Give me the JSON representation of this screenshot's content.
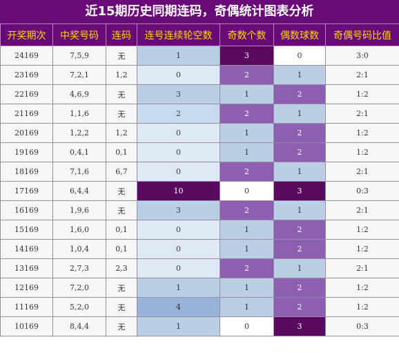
{
  "title": "近15期历史同期连码，奇偶统计图表分析",
  "headers": [
    "开奖期次",
    "中奖号码",
    "连码",
    "连号连续轮空数",
    "奇数个数",
    "偶数球数",
    "奇偶号码比值"
  ],
  "rows": [
    {
      "period": "24169",
      "numbers": "7,5,9",
      "consec": "无",
      "gap": "1",
      "odd": "3",
      "even": "0",
      "ratio": "3:0"
    },
    {
      "period": "23169",
      "numbers": "7,2,1",
      "consec": "1,2",
      "gap": "0",
      "odd": "2",
      "even": "1",
      "ratio": "2:1"
    },
    {
      "period": "22169",
      "numbers": "4,6,9",
      "consec": "无",
      "gap": "3",
      "odd": "1",
      "even": "2",
      "ratio": "1:2"
    },
    {
      "period": "21169",
      "numbers": "1,1,6",
      "consec": "无",
      "gap": "2",
      "odd": "2",
      "even": "1",
      "ratio": "2:1"
    },
    {
      "period": "20169",
      "numbers": "1,2,2",
      "consec": "1,2",
      "gap": "0",
      "odd": "1",
      "even": "2",
      "ratio": "1:2"
    },
    {
      "period": "19169",
      "numbers": "0,4,1",
      "consec": "0,1",
      "gap": "0",
      "odd": "1",
      "even": "2",
      "ratio": "1:2"
    },
    {
      "period": "18169",
      "numbers": "7,1,6",
      "consec": "6,7",
      "gap": "0",
      "odd": "2",
      "even": "1",
      "ratio": "2:1"
    },
    {
      "period": "17169",
      "numbers": "6,4,4",
      "consec": "无",
      "gap": "10",
      "odd": "0",
      "even": "3",
      "ratio": "0:3"
    },
    {
      "period": "16169",
      "numbers": "1,9,6",
      "consec": "无",
      "gap": "3",
      "odd": "2",
      "even": "1",
      "ratio": "2:1"
    },
    {
      "period": "15169",
      "numbers": "1,6,0",
      "consec": "0,1",
      "gap": "0",
      "odd": "1",
      "even": "2",
      "ratio": "1:2"
    },
    {
      "period": "14169",
      "numbers": "1,0,4",
      "consec": "0,1",
      "gap": "0",
      "odd": "1",
      "even": "2",
      "ratio": "1:2"
    },
    {
      "period": "13169",
      "numbers": "2,7,3",
      "consec": "2,3",
      "gap": "0",
      "odd": "2",
      "even": "1",
      "ratio": "2:1"
    },
    {
      "period": "12169",
      "numbers": "7,2,0",
      "consec": "无",
      "gap": "1",
      "odd": "1",
      "even": "2",
      "ratio": "1:2"
    },
    {
      "period": "11169",
      "numbers": "5,2,0",
      "consec": "无",
      "gap": "4",
      "odd": "1",
      "even": "2",
      "ratio": "1:2"
    },
    {
      "period": "10169",
      "numbers": "8,4,4",
      "consec": "无",
      "gap": "1",
      "odd": "0",
      "even": "3",
      "ratio": "0:3"
    }
  ]
}
